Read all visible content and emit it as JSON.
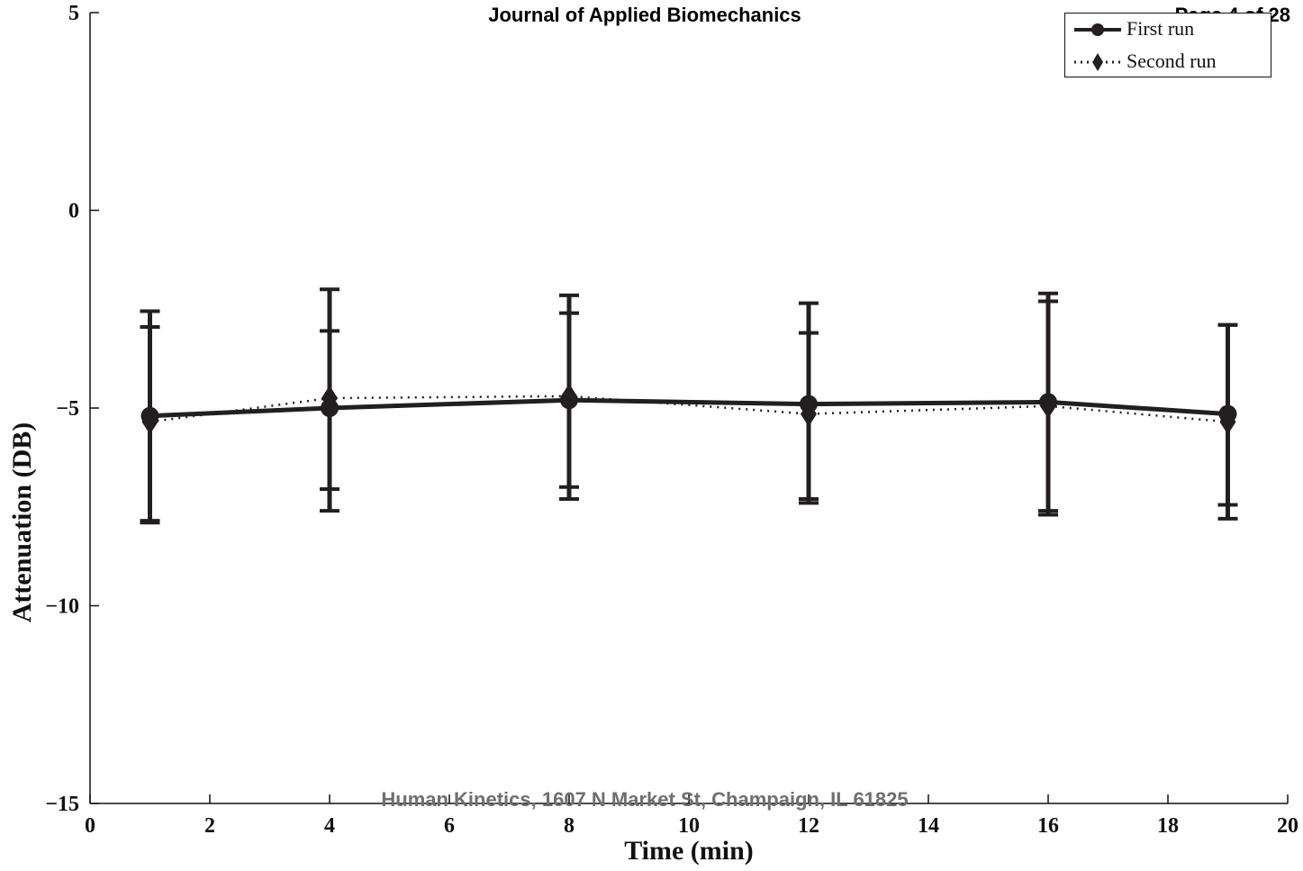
{
  "header": {
    "journal": "Journal of Applied Biomechanics",
    "page": "Page 4 of 28"
  },
  "footer": {
    "publisher": "Human Kinetics, 1607 N Market St, Champaign, IL 61825"
  },
  "chart_data": {
    "type": "line",
    "title": "",
    "xlabel": "Time (min)",
    "ylabel": "Attenuation (DB)",
    "xlim": [
      0,
      20
    ],
    "ylim": [
      -15,
      5
    ],
    "xticks": [
      0,
      2,
      4,
      6,
      8,
      10,
      12,
      14,
      16,
      18,
      20
    ],
    "yticks": [
      -15,
      -10,
      -5,
      0,
      5
    ],
    "xtick_labels": [
      "0",
      "2",
      "4",
      "6",
      "8",
      "10",
      "12",
      "14",
      "16",
      "18",
      "20"
    ],
    "ytick_labels": [
      "−15",
      "−10",
      "−5",
      "0",
      "5"
    ],
    "grid": false,
    "legend_position": "top-right",
    "colors": {
      "line": "#231f20",
      "axis": "#111111",
      "footer": "#6f6f6f"
    },
    "series": [
      {
        "name": "First run",
        "marker": "circle",
        "line_style": "solid",
        "x": [
          1,
          4,
          8,
          12,
          16,
          19
        ],
        "y": [
          -5.2,
          -5.0,
          -4.8,
          -4.9,
          -4.85,
          -5.15
        ],
        "err_low": [
          -7.85,
          -7.6,
          -7.3,
          -7.4,
          -7.7,
          -7.8
        ],
        "err_high": [
          -2.55,
          -2.0,
          -2.15,
          -2.35,
          -2.1,
          -2.9
        ]
      },
      {
        "name": "Second run",
        "marker": "diamond",
        "line_style": "dotted",
        "x": [
          1,
          4,
          8,
          12,
          16,
          19
        ],
        "y": [
          -5.35,
          -4.75,
          -4.7,
          -5.15,
          -4.95,
          -5.35
        ],
        "err_low": [
          -7.9,
          -7.05,
          -7.0,
          -7.3,
          -7.6,
          -7.45
        ],
        "err_high": [
          -2.95,
          -3.05,
          -2.6,
          -3.1,
          -2.3,
          -2.9
        ]
      }
    ]
  }
}
